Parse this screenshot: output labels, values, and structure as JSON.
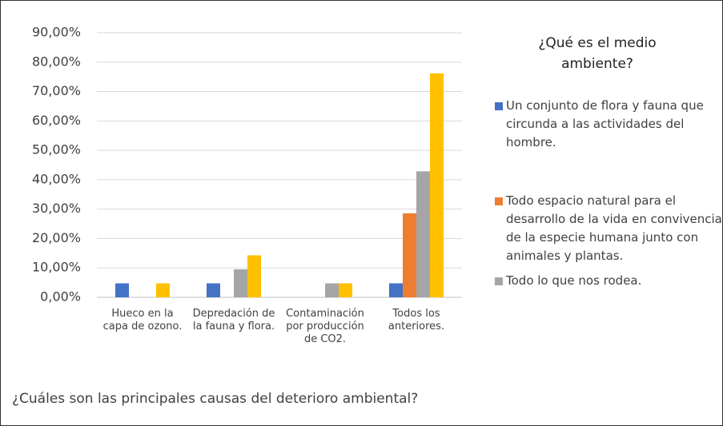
{
  "chart_data": {
    "type": "bar",
    "legend_title": "¿Qué es el medio ambiente?",
    "xlabel": "¿Cuáles son las principales causas del deterioro ambiental?",
    "categories": [
      "Hueco en la capa de ozono.",
      "Depredación de la fauna y flora.",
      "Contaminación por producción de CO2.",
      "Todos los anteriores."
    ],
    "series": [
      {
        "name": "Un conjunto de flora y fauna que circunda a las actividades del hombre.",
        "color": "#4472c4",
        "values": [
          4.76,
          4.76,
          0,
          4.76
        ]
      },
      {
        "name": "Todo espacio natural para el desarrollo de la vida en convivencia de la especie humana junto con animales y plantas.",
        "color": "#ed7d31",
        "values": [
          0,
          0,
          0,
          28.57
        ]
      },
      {
        "name": "Todo lo que nos rodea.",
        "color": "#a5a5a5",
        "values": [
          0,
          9.52,
          4.76,
          42.86
        ]
      },
      {
        "color": "#ffc000",
        "values": [
          4.76,
          14.29,
          4.76,
          76.19
        ]
      }
    ],
    "ylim": [
      0,
      90
    ],
    "yticks": [
      {
        "value": 0,
        "label": "0,00%"
      },
      {
        "value": 10,
        "label": "10,00%"
      },
      {
        "value": 20,
        "label": "20,00%"
      },
      {
        "value": 30,
        "label": "30,00%"
      },
      {
        "value": 40,
        "label": "40,00%"
      },
      {
        "value": 50,
        "label": "50,00%"
      },
      {
        "value": 60,
        "label": "60,00%"
      },
      {
        "value": 70,
        "label": "70,00%"
      },
      {
        "value": 80,
        "label": "80,00%"
      },
      {
        "value": 90,
        "label": "90,00%"
      }
    ],
    "grid": true,
    "legend": "right"
  }
}
